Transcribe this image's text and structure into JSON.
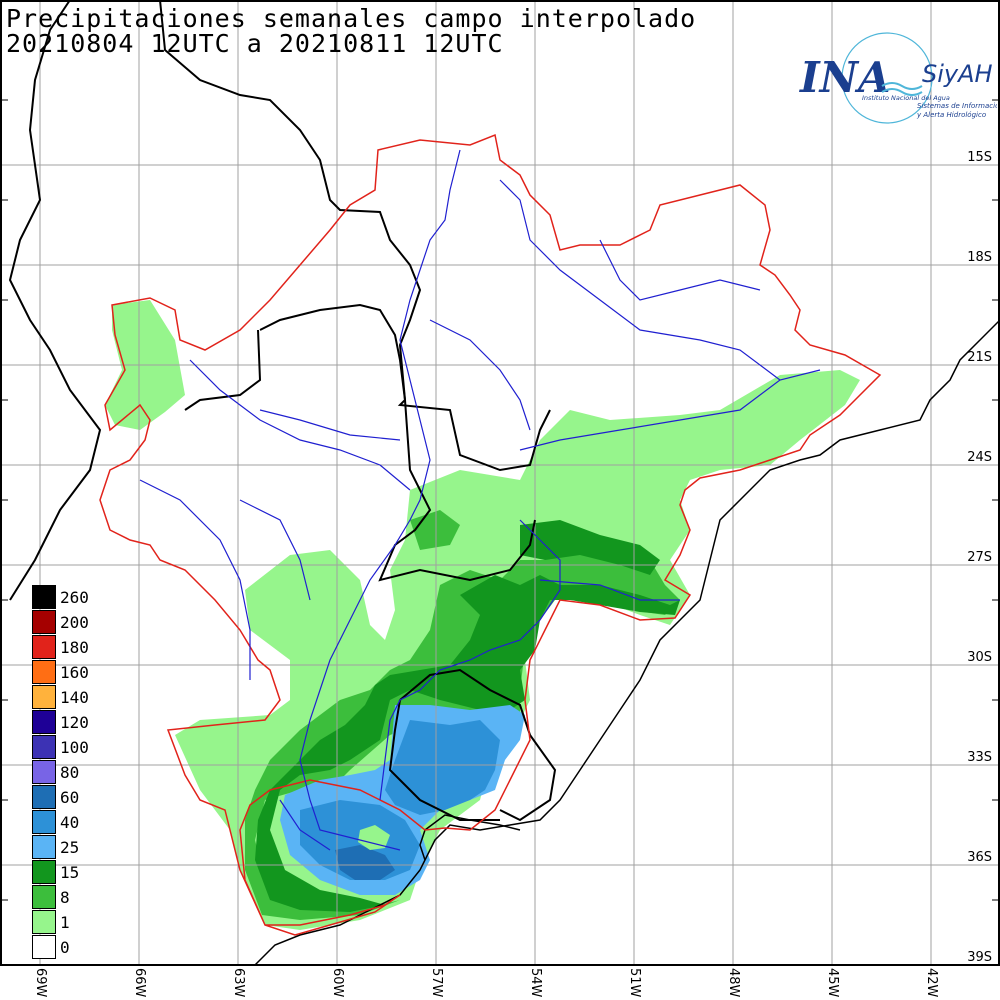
{
  "title_line1": "Precipitaciones semanales campo interpolado",
  "title_line2": "20210804 12UTC a 20210811 12UTC",
  "logo": {
    "brand": "INA",
    "product": "SiyAH",
    "subtitle": "Instituto Nacional del Agua",
    "tagline1": "Sistemas de Información",
    "tagline2": "y Alerta Hidrológico"
  },
  "legend": [
    {
      "label": "260",
      "color": "#000000"
    },
    {
      "label": "200",
      "color": "#a50000"
    },
    {
      "label": "180",
      "color": "#e1231b"
    },
    {
      "label": "160",
      "color": "#ff6e14"
    },
    {
      "label": "140",
      "color": "#ffb23c"
    },
    {
      "label": "120",
      "color": "#1e0096"
    },
    {
      "label": "100",
      "color": "#3c32b4"
    },
    {
      "label": "80",
      "color": "#7864e6"
    },
    {
      "label": "60",
      "color": "#1e6eb4"
    },
    {
      "label": "40",
      "color": "#2d91d7"
    },
    {
      "label": "25",
      "color": "#5ab4f5"
    },
    {
      "label": "15",
      "color": "#12961e"
    },
    {
      "label": "8",
      "color": "#3cbe3c"
    },
    {
      "label": "1",
      "color": "#96f58c"
    },
    {
      "label": "0",
      "color": "#ffffff"
    }
  ],
  "lat_labels": [
    "15S",
    "18S",
    "21S",
    "24S",
    "27S",
    "30S",
    "33S",
    "36S",
    "39S"
  ],
  "lon_labels": [
    "69W",
    "66W",
    "63W",
    "60W",
    "57W",
    "54W",
    "51W",
    "48W",
    "45W",
    "42W"
  ]
}
